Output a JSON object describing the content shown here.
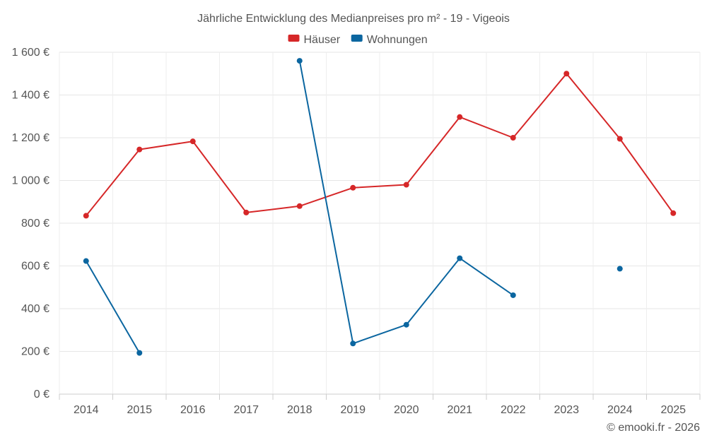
{
  "chart_data": {
    "type": "line",
    "title": "Jährliche Entwicklung des Medianpreises pro m² - 19 - Vigeois",
    "credit": "© emooki.fr - 2026",
    "xlabel": "",
    "ylabel": "",
    "ylim": [
      0,
      1600
    ],
    "yticks": [
      0,
      200,
      400,
      600,
      800,
      1000,
      1200,
      1400,
      1600
    ],
    "ytick_labels": [
      "0 €",
      "200 €",
      "400 €",
      "600 €",
      "800 €",
      "1 000 €",
      "1 200 €",
      "1 400 €",
      "1 600 €"
    ],
    "categories": [
      "2014",
      "2015",
      "2016",
      "2017",
      "2018",
      "2019",
      "2020",
      "2021",
      "2022",
      "2023",
      "2024",
      "2025"
    ],
    "grid": true,
    "legend_position": "top-center",
    "series": [
      {
        "name": "Häuser",
        "color": "#d62728",
        "values": [
          835,
          1145,
          1183,
          850,
          880,
          966,
          980,
          1297,
          1200,
          1500,
          1195,
          847
        ]
      },
      {
        "name": "Wohnungen",
        "color": "#0b66a0",
        "values": [
          623,
          193,
          null,
          null,
          1560,
          237,
          325,
          636,
          463,
          null,
          587,
          null
        ]
      }
    ]
  }
}
